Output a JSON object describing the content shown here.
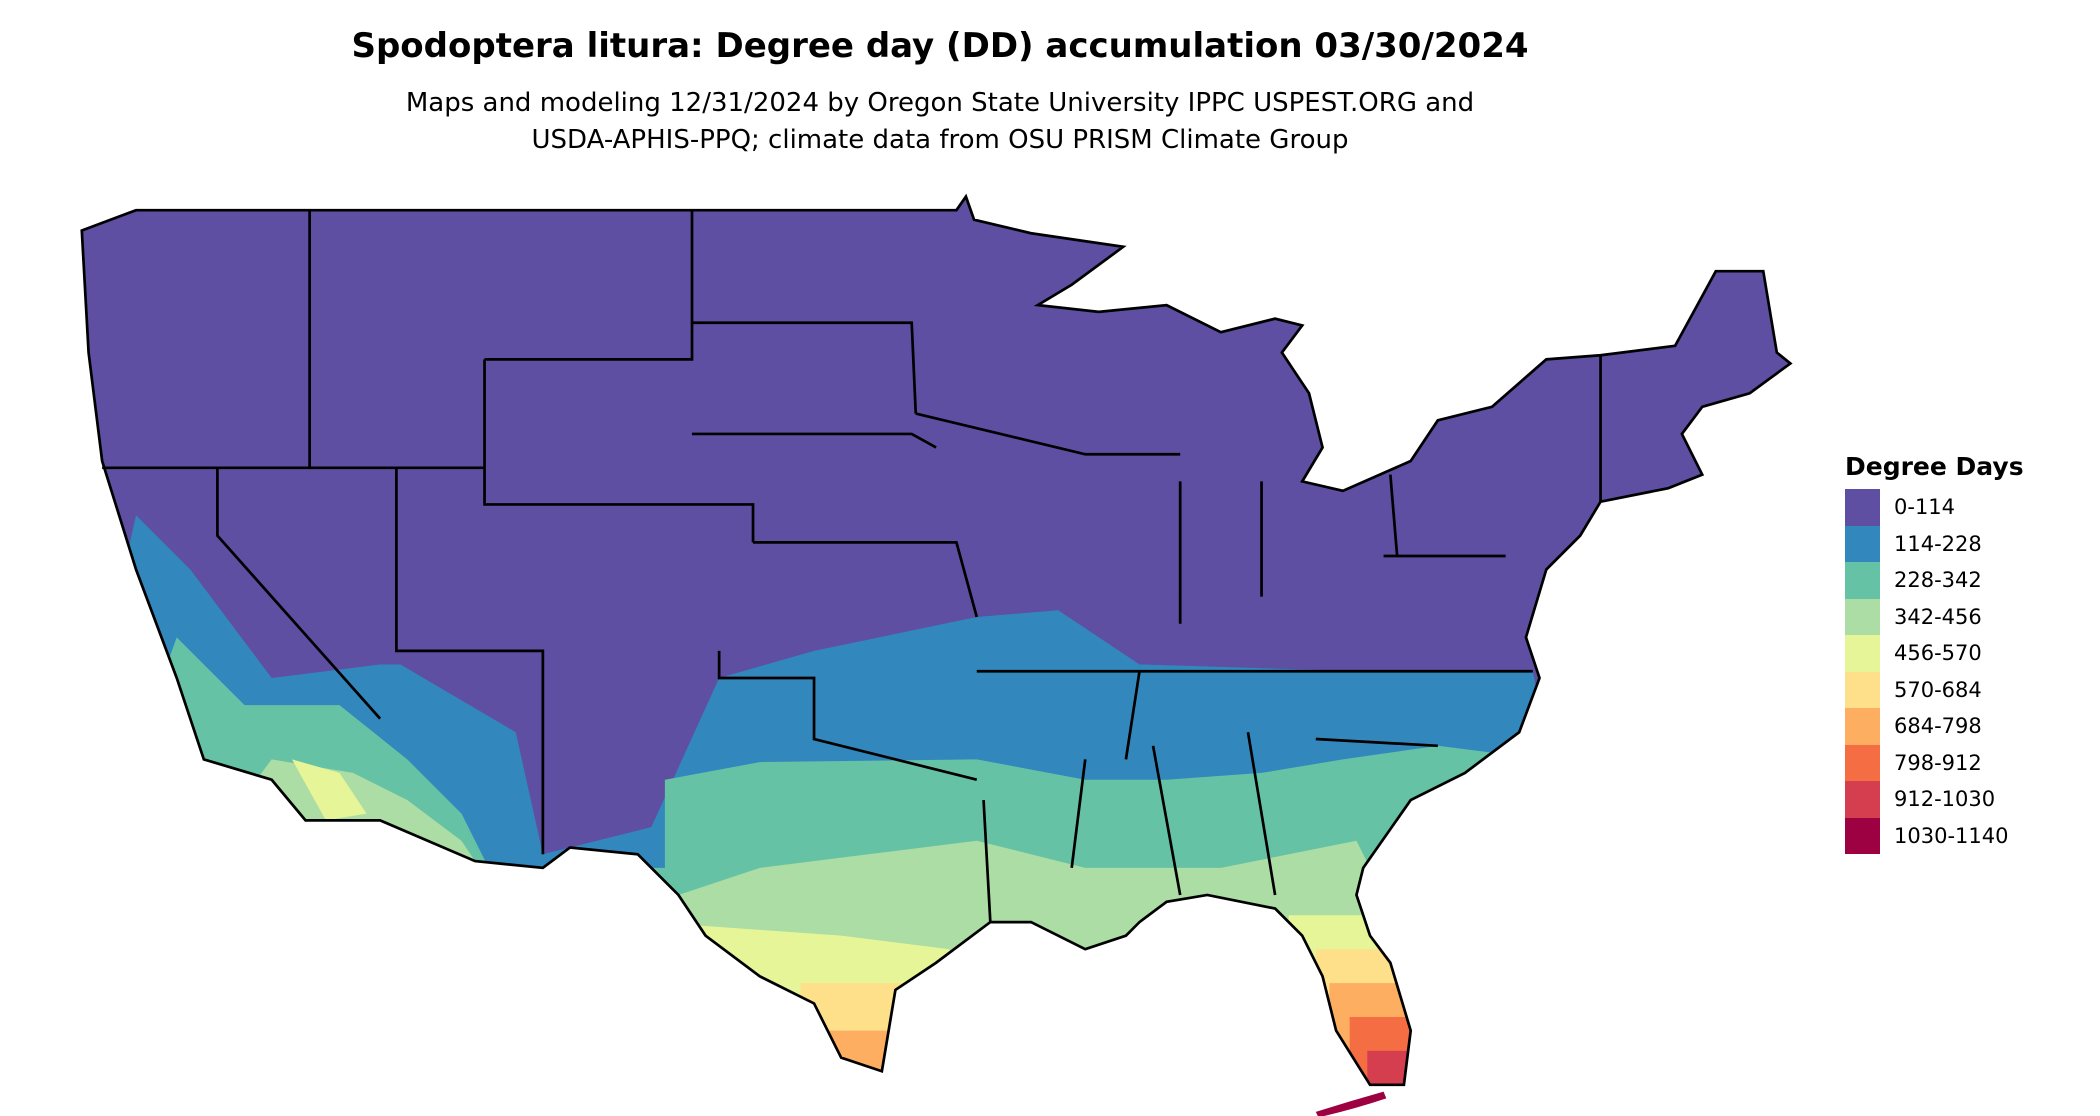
{
  "title": "Spodoptera litura: Degree day (DD) accumulation 03/30/2024",
  "subtitle_lines": [
    "Maps and modeling 12/31/2024 by Oregon State University IPPC USPEST.ORG and",
    "USDA-APHIS-PPQ; climate data from OSU PRISM Climate Group"
  ],
  "legend": {
    "title": "Degree Days",
    "position": "right",
    "items": [
      {
        "label": "0-114",
        "color": "#5E4FA2"
      },
      {
        "label": "114-228",
        "color": "#3288BD"
      },
      {
        "label": "228-342",
        "color": "#66C2A5"
      },
      {
        "label": "342-456",
        "color": "#ABDDA4"
      },
      {
        "label": "456-570",
        "color": "#E6F598"
      },
      {
        "label": "570-684",
        "color": "#FEE08B"
      },
      {
        "label": "684-798",
        "color": "#FDAE61"
      },
      {
        "label": "798-912",
        "color": "#F46D43"
      },
      {
        "label": "912-1030",
        "color": "#D53E4F"
      },
      {
        "label": "1030-1140",
        "color": "#9E0142"
      }
    ]
  },
  "chart_data": {
    "type": "choropleth",
    "region": "Contiguous United States",
    "variable": "Degree Days",
    "date": "03/30/2024",
    "bins": [
      "0-114",
      "114-228",
      "228-342",
      "342-456",
      "456-570",
      "570-684",
      "684-798",
      "798-912",
      "912-1030",
      "1030-1140"
    ]
  }
}
